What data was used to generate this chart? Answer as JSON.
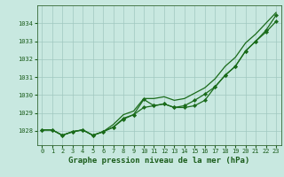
{
  "title": "Graphe pression niveau de la mer (hPa)",
  "bg_color": "#c8e8e0",
  "grid_color": "#a0c8c0",
  "line_color": "#1a6b1a",
  "marker_color": "#1a6b1a",
  "xlim": [
    -0.5,
    23.5
  ],
  "ylim": [
    1027.2,
    1035.0
  ],
  "yticks": [
    1028,
    1029,
    1030,
    1031,
    1032,
    1033,
    1034
  ],
  "xticks": [
    0,
    1,
    2,
    3,
    4,
    5,
    6,
    7,
    8,
    9,
    10,
    11,
    12,
    13,
    14,
    15,
    16,
    17,
    18,
    19,
    20,
    21,
    22,
    23
  ],
  "series_smooth": [
    1028.05,
    1028.05,
    1027.75,
    1027.95,
    1028.05,
    1027.75,
    1027.95,
    1028.35,
    1028.9,
    1029.1,
    1029.8,
    1029.8,
    1029.9,
    1029.7,
    1029.8,
    1030.1,
    1030.4,
    1030.9,
    1031.6,
    1032.1,
    1032.9,
    1033.4,
    1034.0,
    1034.6
  ],
  "series_main": [
    1028.05,
    1028.05,
    1027.75,
    1027.95,
    1028.05,
    1027.75,
    1027.95,
    1028.2,
    1028.7,
    1028.9,
    1029.75,
    1029.4,
    1029.5,
    1029.3,
    1029.4,
    1029.7,
    1030.05,
    1030.45,
    1031.1,
    1031.6,
    1032.45,
    1033.0,
    1033.6,
    1034.45
  ],
  "series_low": [
    1028.05,
    1028.05,
    1027.75,
    1027.95,
    1028.05,
    1027.75,
    1027.95,
    1028.2,
    1028.65,
    1028.9,
    1029.3,
    1029.4,
    1029.5,
    1029.3,
    1029.3,
    1029.4,
    1029.7,
    1030.45,
    1031.1,
    1031.6,
    1032.45,
    1033.0,
    1033.5,
    1034.1
  ],
  "title_fontsize": 6.5,
  "tick_fontsize": 5.0
}
